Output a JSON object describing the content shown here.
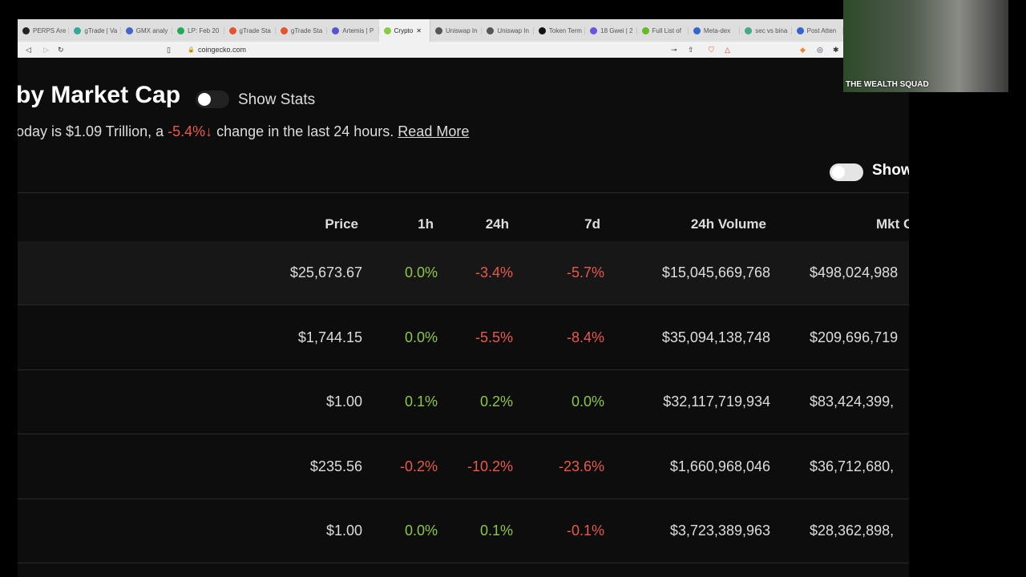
{
  "browser": {
    "tabs": [
      "PERPS Are",
      "gTrade | Va",
      "GMX analy",
      "LP: Feb 20",
      "gTrade Sta",
      "gTrade Sta",
      "Artemis | P",
      "Crypto",
      "Uniswap In",
      "Uniswap In",
      "Token Term",
      "18 Gwei | 2",
      "Full List of",
      "Meta-dex",
      "sec vs bina",
      "Post Atten"
    ],
    "active_tab": 7,
    "url": "coingecko.com"
  },
  "page": {
    "title": "by Market Cap",
    "show_stats": "Show Stats",
    "desc_prefix": "oday is $1.09 Trillion, a ",
    "desc_change": "-5.4%↓",
    "desc_suffix": " change in the last 24 hours. ",
    "read_more": "Read More",
    "show_label": "Show"
  },
  "table": {
    "headers": [
      "Price",
      "1h",
      "24h",
      "7d",
      "24h Volume",
      "Mkt C"
    ],
    "rows": [
      [
        "$25,673.67",
        "0.0%",
        "-3.4%",
        "-5.7%",
        "$15,045,669,768",
        "$498,024,988"
      ],
      [
        "$1,744.15",
        "0.0%",
        "-5.5%",
        "-8.4%",
        "$35,094,138,748",
        "$209,696,719"
      ],
      [
        "$1.00",
        "0.1%",
        "0.2%",
        "0.0%",
        "$32,117,719,934",
        "$83,424,399,"
      ],
      [
        "$235.56",
        "-0.2%",
        "-10.2%",
        "-23.6%",
        "$1,660,968,046",
        "$36,712,680,"
      ],
      [
        "$1.00",
        "0.0%",
        "0.1%",
        "-0.1%",
        "$3,723,389,963",
        "$28,362,898,"
      ]
    ]
  },
  "overlay": {
    "label": "THE WEALTH SQUAD"
  },
  "colors": {
    "positive": "#8dc647",
    "negative": "#e9594c"
  }
}
